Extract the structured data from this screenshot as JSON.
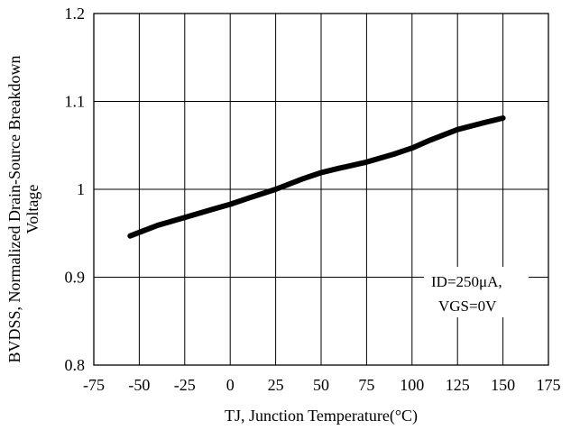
{
  "chart_data": {
    "type": "line",
    "title": "",
    "xlabel": "TJ, Junction Temperature(°C)",
    "ylabel_line1": "BVDSS, Normalized Drain-Source Breakdown",
    "ylabel_line2": "Voltage",
    "xlim": [
      -75,
      175
    ],
    "ylim": [
      0.8,
      1.2
    ],
    "x_ticks": [
      -75,
      -50,
      -25,
      0,
      25,
      50,
      75,
      100,
      125,
      150,
      175
    ],
    "x_tick_labels": [
      "-75",
      "-50",
      "-25",
      "0",
      "25",
      "50",
      "75",
      "100",
      "125",
      "150",
      "175"
    ],
    "y_ticks": [
      0.8,
      0.9,
      1.0,
      1.1,
      1.2
    ],
    "y_tick_labels": [
      "0.8",
      "0.9",
      "1",
      "1.1",
      "1.2"
    ],
    "grid": true,
    "legend": "none",
    "series": [
      {
        "color": "#000000",
        "x": [
          -55,
          -50,
          -40,
          -25,
          -10,
          0,
          10,
          25,
          40,
          50,
          60,
          75,
          90,
          100,
          110,
          125,
          140,
          150
        ],
        "values": [
          0.947,
          0.951,
          0.959,
          0.968,
          0.977,
          0.983,
          0.99,
          1.0,
          1.012,
          1.019,
          1.024,
          1.031,
          1.04,
          1.047,
          1.056,
          1.068,
          1.076,
          1.081
        ]
      }
    ],
    "annotation": {
      "line1": "ID=250μA,",
      "line2": "VGS=0V"
    }
  }
}
